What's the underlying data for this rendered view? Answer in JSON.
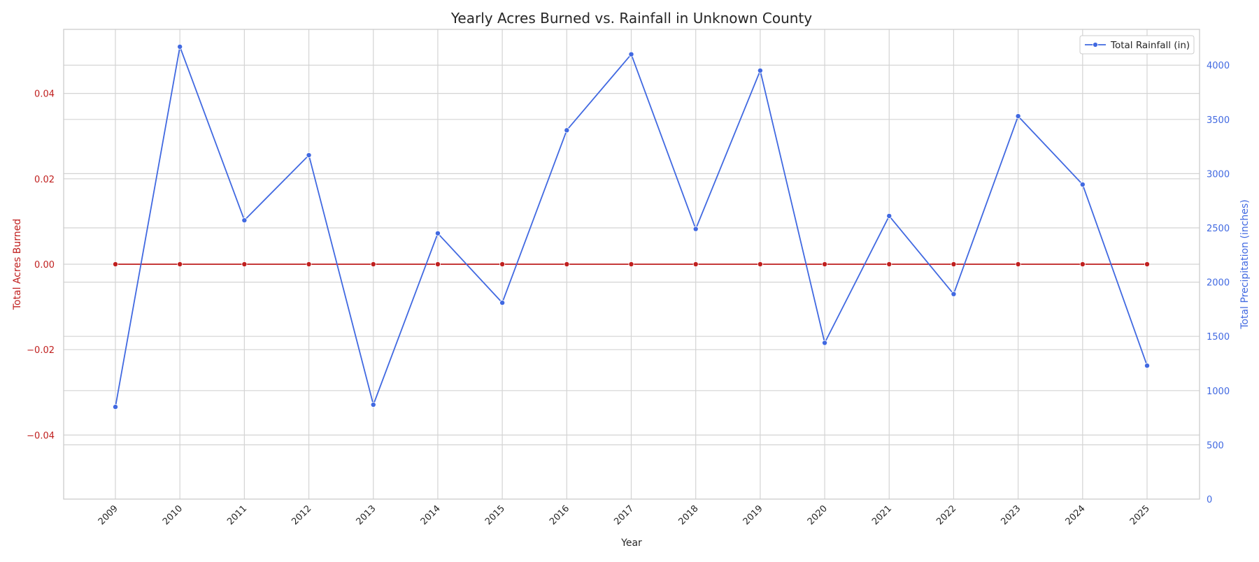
{
  "chart_data": {
    "type": "line",
    "title": "Yearly Acres Burned vs. Rainfall in Unknown County",
    "xlabel": "Year",
    "x": [
      "2009",
      "2010",
      "2011",
      "2012",
      "2013",
      "2014",
      "2015",
      "2016",
      "2017",
      "2018",
      "2019",
      "2020",
      "2021",
      "2022",
      "2023",
      "2024",
      "2025"
    ],
    "left_axis": {
      "label": "Total Acres Burned",
      "ylim": [
        -0.055,
        0.055
      ],
      "ticks": [
        -0.04,
        -0.02,
        0.0,
        0.02,
        0.04
      ],
      "tick_labels": [
        "−0.04",
        "−0.02",
        "0.00",
        "0.02",
        "0.04"
      ],
      "color": "#c0201f"
    },
    "right_axis": {
      "label": "Total Precipitation (inches)",
      "ylim": [
        0,
        4330
      ],
      "ticks": [
        0,
        500,
        1000,
        1500,
        2000,
        2500,
        3000,
        3500,
        4000
      ],
      "tick_labels": [
        "0",
        "500",
        "1000",
        "1500",
        "2000",
        "2500",
        "3000",
        "3500",
        "4000"
      ],
      "color": "#4169e1"
    },
    "series": [
      {
        "axis": "left",
        "color": "#c0201f",
        "values": [
          0,
          0,
          0,
          0,
          0,
          0,
          0,
          0,
          0,
          0,
          0,
          0,
          0,
          0,
          0,
          0,
          0
        ]
      },
      {
        "name": "Total Rainfall (in)",
        "axis": "right",
        "color": "#4169e1",
        "values": [
          850,
          4170,
          2570,
          3170,
          870,
          2450,
          1810,
          3400,
          4100,
          2490,
          3950,
          1440,
          2610,
          1890,
          3530,
          2900,
          1230
        ]
      }
    ],
    "legend": {
      "position": "top-right",
      "entries": [
        "Total Rainfall (in)"
      ]
    },
    "grid": true
  }
}
